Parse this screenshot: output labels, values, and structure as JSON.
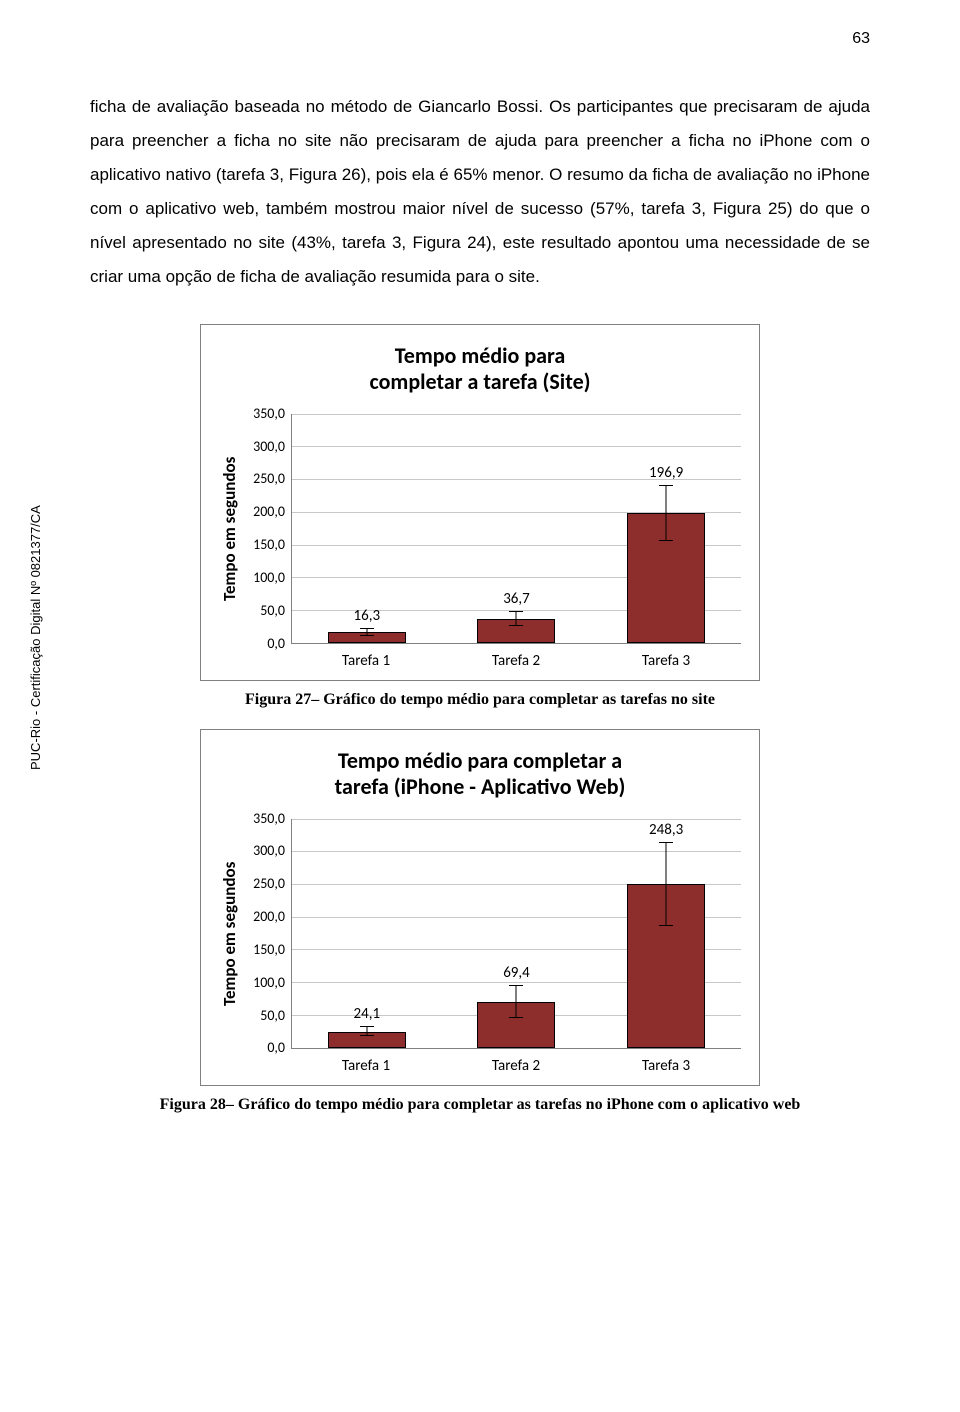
{
  "page_number": "63",
  "side_label": "PUC-Rio - Certificação Digital Nº 0821377/CA",
  "body_text": "ficha de avaliação baseada no método de Giancarlo Bossi. Os participantes que precisaram de ajuda para preencher a ficha no site não precisaram de ajuda para preencher a ficha no iPhone com o aplicativo nativo (tarefa 3, Figura 26), pois ela é 65% menor. O resumo da ficha de avaliação no iPhone com o aplicativo web, também mostrou maior nível de sucesso (57%, tarefa 3, Figura 25) do que o nível apresentado no site (43%, tarefa 3, Figura 24), este resultado apontou uma necessidade de se criar uma opção de ficha de avaliação resumida para o site.",
  "chart1": {
    "title_line1": "Tempo médio para",
    "title_line2": "completar a tarefa (Site)",
    "ylabel": "Tempo em segundos",
    "ymin": 0,
    "ymax": 350,
    "ytick_step": 50,
    "yticks": [
      "350,0",
      "300,0",
      "250,0",
      "200,0",
      "150,0",
      "100,0",
      "50,0",
      "0,0"
    ],
    "bar_color": "#8e2e2c",
    "grid_color": "#c8c8c8",
    "categories": [
      "Tarefa 1",
      "Tarefa 2",
      "Tarefa 3"
    ],
    "values": [
      16.3,
      36.7,
      196.9
    ],
    "value_labels": [
      "16,3",
      "36,7",
      "196,9"
    ],
    "error_pct": [
      0.015,
      0.03,
      0.12
    ]
  },
  "caption1": "Figura 27– Gráfico do tempo médio para completar as tarefas no site",
  "chart2": {
    "title_line1": "Tempo médio para completar a",
    "title_line2": "tarefa (iPhone - Aplicativo Web)",
    "ylabel": "Tempo em segundos",
    "ymin": 0,
    "ymax": 350,
    "ytick_step": 50,
    "yticks": [
      "350,0",
      "300,0",
      "250,0",
      "200,0",
      "150,0",
      "100,0",
      "50,0",
      "0,0"
    ],
    "bar_color": "#8e2e2c",
    "grid_color": "#c8c8c8",
    "categories": [
      "Tarefa 1",
      "Tarefa 2",
      "Tarefa 3"
    ],
    "values": [
      24.1,
      69.4,
      248.3
    ],
    "value_labels": [
      "24,1",
      "69,4",
      "248,3"
    ],
    "error_pct": [
      0.02,
      0.07,
      0.18
    ]
  },
  "caption2": "Figura 28– Gráfico do tempo médio para completar as tarefas no iPhone com o aplicativo web"
}
